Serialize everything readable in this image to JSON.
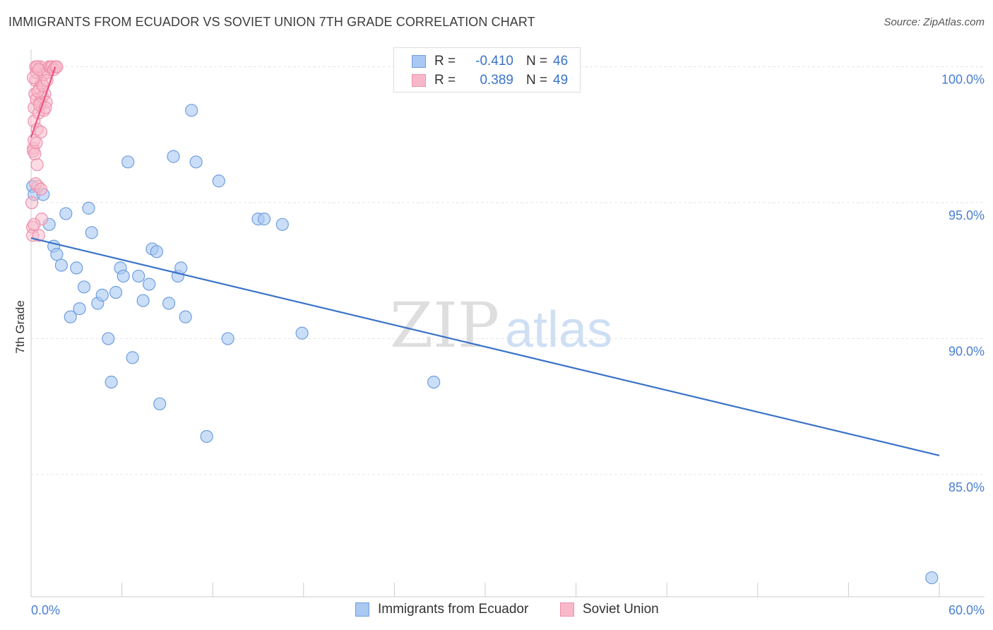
{
  "title": "IMMIGRANTS FROM ECUADOR VS SOVIET UNION 7TH GRADE CORRELATION CHART",
  "source": "Source: ZipAtlas.com",
  "watermark": {
    "zip": "ZIP",
    "atlas": "atlas"
  },
  "legend_top": {
    "rows": [
      {
        "r_label": "R =",
        "r_value": "-0.410",
        "n_label": "N =",
        "n_value": "46",
        "color": "#a9c8f2",
        "border": "#6f9ee0"
      },
      {
        "r_label": "R =",
        "r_value": "0.389",
        "n_label": "N =",
        "n_value": "49",
        "color": "#f7b9ca",
        "border": "#ee8fac"
      }
    ]
  },
  "legend_bottom": [
    {
      "label": "Immigrants from Ecuador",
      "color": "#a9c8f2",
      "border": "#6f9ee0"
    },
    {
      "label": "Soviet Union",
      "color": "#f7b9ca",
      "border": "#ee8fac"
    }
  ],
  "chart_data": {
    "type": "scatter",
    "title": "IMMIGRANTS FROM ECUADOR VS SOVIET UNION 7TH GRADE CORRELATION CHART",
    "xlabel": "",
    "ylabel": "7th Grade",
    "xlim": [
      0,
      60
    ],
    "ylim": [
      80.5,
      100.9
    ],
    "x_tick_labels": {
      "left": "0.0%",
      "right": "60.0%"
    },
    "y_ticks": [
      {
        "value": 100,
        "label": "100.0%"
      },
      {
        "value": 95,
        "label": "95.0%"
      },
      {
        "value": 90,
        "label": "90.0%"
      },
      {
        "value": 85,
        "label": "85.0%"
      }
    ],
    "grid": true,
    "series": [
      {
        "name": "Immigrants from Ecuador",
        "color": "#6f9ee0",
        "fill": "#a9c8f2",
        "trend_color": "#3a73c9",
        "trend": {
          "x0": 0.0,
          "y0": 93.7,
          "x1": 60.0,
          "y1": 85.7
        },
        "points": [
          [
            0.1,
            95.6
          ],
          [
            0.2,
            95.3
          ],
          [
            0.8,
            95.3
          ],
          [
            1.2,
            94.2
          ],
          [
            1.5,
            93.4
          ],
          [
            1.7,
            93.1
          ],
          [
            2.0,
            92.7
          ],
          [
            2.3,
            94.6
          ],
          [
            2.6,
            90.8
          ],
          [
            3.0,
            92.6
          ],
          [
            3.2,
            91.1
          ],
          [
            3.5,
            91.9
          ],
          [
            3.8,
            94.8
          ],
          [
            4.0,
            93.9
          ],
          [
            4.4,
            91.3
          ],
          [
            4.7,
            91.6
          ],
          [
            5.1,
            90.0
          ],
          [
            5.3,
            88.4
          ],
          [
            5.6,
            91.7
          ],
          [
            5.9,
            92.6
          ],
          [
            6.1,
            92.3
          ],
          [
            6.4,
            96.5
          ],
          [
            6.7,
            89.3
          ],
          [
            7.1,
            92.3
          ],
          [
            7.4,
            91.4
          ],
          [
            7.8,
            92.0
          ],
          [
            8.0,
            93.3
          ],
          [
            8.3,
            93.2
          ],
          [
            8.5,
            87.6
          ],
          [
            9.1,
            91.3
          ],
          [
            9.4,
            96.7
          ],
          [
            9.7,
            92.3
          ],
          [
            9.9,
            92.6
          ],
          [
            10.2,
            90.8
          ],
          [
            10.6,
            98.4
          ],
          [
            10.9,
            96.5
          ],
          [
            11.6,
            86.4
          ],
          [
            12.4,
            95.8
          ],
          [
            13.0,
            90.0
          ],
          [
            15.0,
            94.4
          ],
          [
            15.4,
            94.4
          ],
          [
            16.6,
            94.2
          ],
          [
            17.9,
            90.2
          ],
          [
            26.6,
            88.4
          ],
          [
            59.5,
            81.2
          ],
          [
            26.7,
            99.6
          ]
        ]
      },
      {
        "name": "Soviet Union",
        "color": "#ee8fac",
        "fill": "#f7b9ca",
        "trend_color": "#e8557f",
        "trend": {
          "x0": 0.0,
          "y0": 97.4,
          "x1": 1.6,
          "y1": 100.0
        },
        "points": [
          [
            0.05,
            95.0
          ],
          [
            0.1,
            94.1
          ],
          [
            0.1,
            93.8
          ],
          [
            0.15,
            97.0
          ],
          [
            0.15,
            96.9
          ],
          [
            0.2,
            97.3
          ],
          [
            0.2,
            98.0
          ],
          [
            0.2,
            98.5
          ],
          [
            0.25,
            99.0
          ],
          [
            0.3,
            99.5
          ],
          [
            0.3,
            100.0
          ],
          [
            0.35,
            99.8
          ],
          [
            0.35,
            98.8
          ],
          [
            0.4,
            97.7
          ],
          [
            0.4,
            96.4
          ],
          [
            0.45,
            95.6
          ],
          [
            0.5,
            93.8
          ],
          [
            0.5,
            98.3
          ],
          [
            0.55,
            99.2
          ],
          [
            0.6,
            100.0
          ],
          [
            0.6,
            98.7
          ],
          [
            0.65,
            97.6
          ],
          [
            0.7,
            99.4
          ],
          [
            0.7,
            94.4
          ],
          [
            0.75,
            98.9
          ],
          [
            0.8,
            99.7
          ],
          [
            0.85,
            98.4
          ],
          [
            0.9,
            99.0
          ],
          [
            1.0,
            98.7
          ],
          [
            1.1,
            99.8
          ],
          [
            1.2,
            100.0
          ],
          [
            1.3,
            100.0
          ],
          [
            1.4,
            100.0
          ],
          [
            1.5,
            99.9
          ],
          [
            1.6,
            100.0
          ],
          [
            1.7,
            100.0
          ],
          [
            0.25,
            96.8
          ],
          [
            0.3,
            95.7
          ],
          [
            0.45,
            99.1
          ],
          [
            0.55,
            98.6
          ],
          [
            0.15,
            99.6
          ],
          [
            0.65,
            95.5
          ],
          [
            0.35,
            97.2
          ],
          [
            0.2,
            94.2
          ],
          [
            0.8,
            99.3
          ],
          [
            0.95,
            98.5
          ],
          [
            1.05,
            99.5
          ],
          [
            0.4,
            100.0
          ],
          [
            0.5,
            99.9
          ]
        ]
      }
    ]
  }
}
